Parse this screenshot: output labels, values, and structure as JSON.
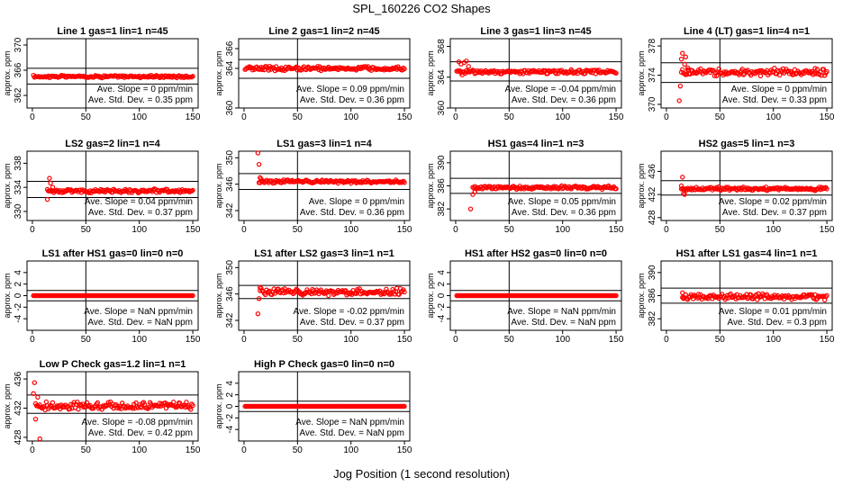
{
  "suptitle": "SPL_160226  CO2 Shapes",
  "xlabel": "Jog Position (1 second resolution)",
  "ylabel": "approx. ppm",
  "xticks": [
    0,
    50,
    100,
    150
  ],
  "colors": {
    "points": "#ff0000",
    "axes": "#000000"
  },
  "chart_data": [
    {
      "type": "scatter",
      "title": "Line 1 gas=1 lin=1 n=45",
      "ylim": [
        360,
        371
      ],
      "yticks": [
        362,
        366,
        370
      ],
      "mean": 365.0,
      "band": [
        363.8,
        366.3
      ],
      "series": {
        "start": 1,
        "end": 150,
        "noise": 0.12
      },
      "slope_text": "Ave. Slope = 0  ppm/min",
      "std_text": "Ave. Std. Dev. = 0.35  ppm"
    },
    {
      "type": "scatter",
      "title": "Line 2 gas=1 lin=2 n=45",
      "ylim": [
        360,
        367
      ],
      "yticks": [
        360,
        364,
        366
      ],
      "mean": 364.0,
      "band": [
        363.0,
        364.9
      ],
      "series": {
        "start": 1,
        "end": 150,
        "noise": 0.12
      },
      "slope_text": "Ave. Slope = 0.09  ppm/min",
      "std_text": "Ave. Std. Dev. = 0.36  ppm"
    },
    {
      "type": "scatter",
      "title": "Line 3 gas=1 lin=3 n=45",
      "ylim": [
        360,
        369
      ],
      "yticks": [
        360,
        364,
        368
      ],
      "mean": 364.7,
      "band": [
        363.5,
        366.0
      ],
      "series": {
        "start": 1,
        "end": 150,
        "noise": 0.15,
        "early": [
          [
            3,
            366.0
          ],
          [
            5,
            365.7
          ],
          [
            6,
            364.3
          ],
          [
            8,
            365.9
          ],
          [
            10,
            366.1
          ],
          [
            12,
            365.4
          ]
        ]
      },
      "slope_text": "Ave. Slope = -0.04  ppm/min",
      "std_text": "Ave. Std. Dev. = 0.36  ppm"
    },
    {
      "type": "scatter",
      "title": "Line 4 (LT) gas=1 lin=4 n=1",
      "ylim": [
        369.5,
        379
      ],
      "yticks": [
        370,
        374,
        378
      ],
      "mean": 374.4,
      "band": [
        373.0,
        375.7
      ],
      "series": {
        "start": 14,
        "end": 150,
        "noise": 0.3,
        "early": [
          [
            12,
            370.5
          ],
          [
            13,
            372.5
          ],
          [
            14,
            376.2
          ],
          [
            15,
            377.0
          ],
          [
            17,
            375.5
          ],
          [
            18,
            376.5
          ],
          [
            20,
            375.0
          ],
          [
            21,
            374.2
          ]
        ]
      },
      "slope_text": "Ave. Slope = 0  ppm/min",
      "std_text": "Ave. Std. Dev. = 0.33  ppm"
    },
    {
      "type": "scatter",
      "title": "LS2 gas=2 lin=1 n=4",
      "ylim": [
        328.5,
        340
      ],
      "yticks": [
        330,
        334,
        338
      ],
      "mean": 333.4,
      "band": [
        332.3,
        335.0
      ],
      "series": {
        "start": 14,
        "end": 150,
        "noise": 0.18,
        "early": [
          [
            14,
            332.0
          ],
          [
            16,
            335.5
          ],
          [
            17,
            334.7
          ],
          [
            19,
            334.0
          ]
        ]
      },
      "slope_text": "Ave. Slope = 0.04  ppm/min",
      "std_text": "Ave. Std. Dev. = 0.37  ppm"
    },
    {
      "type": "scatter",
      "title": "LS1 gas=3 lin=1 n=4",
      "ylim": [
        340.5,
        351
      ],
      "yticks": [
        342,
        346,
        350
      ],
      "mean": 346.4,
      "band": [
        345.2,
        347.6
      ],
      "series": {
        "start": 14,
        "end": 150,
        "noise": 0.15,
        "early": [
          [
            13,
            351.0
          ],
          [
            14,
            349.0
          ],
          [
            15,
            347.0
          ],
          [
            16,
            346.8
          ]
        ]
      },
      "slope_text": "Ave. Slope = 0  ppm/min",
      "std_text": "Ave. Std. Dev. = 0.36  ppm"
    },
    {
      "type": "scatter",
      "title": "HS1 gas=4 lin=1 n=3",
      "ylim": [
        380,
        392
      ],
      "yticks": [
        382,
        386,
        390
      ],
      "mean": 385.7,
      "band": [
        384.7,
        387.3
      ],
      "series": {
        "start": 16,
        "end": 150,
        "noise": 0.18,
        "early": [
          [
            14,
            382.0
          ],
          [
            16,
            384.5
          ],
          [
            18,
            385.0
          ]
        ]
      },
      "slope_text": "Ave. Slope = 0.05  ppm/min",
      "std_text": "Ave. Std. Dev. = 0.36  ppm"
    },
    {
      "type": "scatter",
      "title": "HS2 gas=5 lin=1 n=3",
      "ylim": [
        427.5,
        439.5
      ],
      "yticks": [
        428,
        432,
        436
      ],
      "mean": 433.0,
      "band": [
        431.9,
        434.4
      ],
      "series": {
        "start": 14,
        "end": 150,
        "noise": 0.18,
        "early": [
          [
            14,
            433.5
          ],
          [
            15,
            435.0
          ],
          [
            16,
            432.2
          ],
          [
            17,
            432.0
          ]
        ]
      },
      "slope_text": "Ave. Slope = 0.02  ppm/min",
      "std_text": "Ave. Std. Dev. = 0.37  ppm"
    },
    {
      "type": "scatter",
      "title": "LS1 after HS1 gas=0 lin=0 n=0",
      "ylim": [
        -6,
        6
      ],
      "yticks": [
        -4,
        -2,
        0,
        2,
        4
      ],
      "mean": 0,
      "band": [
        -0.9,
        0.9
      ],
      "series": {
        "start": 1,
        "end": 150,
        "noise": 0
      },
      "slope_text": "Ave. Slope =  NaN  ppm/min",
      "std_text": "Ave. Std. Dev. =  NaN  ppm"
    },
    {
      "type": "scatter",
      "title": "LS1 after LS2 gas=3 lin=1 n=1",
      "ylim": [
        340.5,
        351
      ],
      "yticks": [
        342,
        346,
        350
      ],
      "mean": 346.3,
      "band": [
        345.3,
        347.3
      ],
      "series": {
        "start": 15,
        "end": 150,
        "noise": 0.3,
        "early": [
          [
            13,
            343.0
          ],
          [
            14,
            345.3
          ],
          [
            15,
            347.0
          ]
        ]
      },
      "slope_text": "Ave. Slope = -0.02  ppm/min",
      "std_text": "Ave. Std. Dev. = 0.37  ppm"
    },
    {
      "type": "scatter",
      "title": "HS1 after HS2 gas=0 lin=0 n=0",
      "ylim": [
        -6,
        6
      ],
      "yticks": [
        -4,
        -2,
        0,
        2,
        4
      ],
      "mean": 0,
      "band": [
        -0.9,
        0.9
      ],
      "series": {
        "start": 1,
        "end": 150,
        "noise": 0
      },
      "slope_text": "Ave. Slope =  NaN  ppm/min",
      "std_text": "Ave. Std. Dev. =  NaN  ppm"
    },
    {
      "type": "scatter",
      "title": "HS1 after LS1 gas=4 lin=1 n=1",
      "ylim": [
        380,
        392
      ],
      "yticks": [
        382,
        386,
        390
      ],
      "mean": 385.8,
      "band": [
        384.7,
        387.3
      ],
      "series": {
        "start": 15,
        "end": 150,
        "noise": 0.3,
        "early": [
          [
            15,
            386.5
          ],
          [
            16,
            385.5
          ]
        ]
      },
      "slope_text": "Ave. Slope = 0.01  ppm/min",
      "std_text": "Ave. Std. Dev. = 0.3  ppm"
    },
    {
      "type": "scatter",
      "title": "Low P Check gas=1.2 lin=1 n=1",
      "ylim": [
        427.5,
        437
      ],
      "yticks": [
        428,
        432,
        436
      ],
      "mean": 432.3,
      "band": [
        431.3,
        433.8
      ],
      "series": {
        "start": 3,
        "end": 150,
        "noise": 0.3,
        "early": [
          [
            1,
            434.0
          ],
          [
            2,
            435.5
          ],
          [
            3,
            430.5
          ],
          [
            5,
            433.5
          ],
          [
            7,
            427.8
          ]
        ]
      },
      "slope_text": "Ave. Slope = -0.08  ppm/min",
      "std_text": "Ave. Std. Dev. = 0.42  ppm"
    },
    {
      "type": "scatter",
      "title": "High P Check gas=0 lin=0 n=0",
      "ylim": [
        -6,
        6
      ],
      "yticks": [
        -4,
        -2,
        0,
        2,
        4
      ],
      "mean": 0,
      "band": [
        -0.9,
        0.9
      ],
      "series": {
        "start": 1,
        "end": 150,
        "noise": 0
      },
      "slope_text": "Ave. Slope =  NaN  ppm/min",
      "std_text": "Ave. Std. Dev. =  NaN  ppm"
    }
  ]
}
